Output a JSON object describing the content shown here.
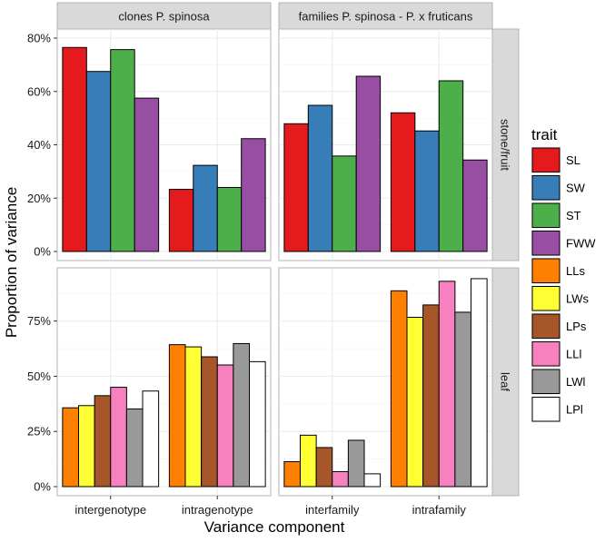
{
  "chart_data": {
    "type": "bar",
    "xlabel": "Variance component",
    "ylabel": "Proportion of variance",
    "legend": {
      "title": "trait",
      "position": "right",
      "items": [
        {
          "label": "SL",
          "color": "#e41a1c"
        },
        {
          "label": "SW",
          "color": "#377eb8"
        },
        {
          "label": "ST",
          "color": "#4daf4a"
        },
        {
          "label": "FWW",
          "color": "#984ea3"
        },
        {
          "label": "LLs",
          "color": "#ff7f00"
        },
        {
          "label": "LWs",
          "color": "#ffff33"
        },
        {
          "label": "LPs",
          "color": "#a65628"
        },
        {
          "label": "LLl",
          "color": "#f781bf"
        },
        {
          "label": "LWl",
          "color": "#999999"
        },
        {
          "label": "LPl",
          "color": "#ffffff"
        }
      ]
    },
    "columns": [
      "clones P. spinosa",
      "families P. spinosa - P. x fruticans"
    ],
    "rows": [
      "stone/fruit",
      "leaf"
    ],
    "row_axes": [
      {
        "ylim": [
          0,
          0.8
        ],
        "ticks": [
          0,
          0.2,
          0.4,
          0.6,
          0.8
        ],
        "tick_labels": [
          "0%",
          "20%",
          "40%",
          "60%",
          "80%"
        ]
      },
      {
        "ylim": [
          0,
          0.95
        ],
        "ticks": [
          0,
          0.25,
          0.5,
          0.75
        ],
        "tick_labels": [
          "0%",
          "25%",
          "50%",
          "75%"
        ]
      }
    ],
    "column_categories": [
      [
        "intergenotype",
        "intragenotype"
      ],
      [
        "interfamily",
        "intrafamily"
      ]
    ],
    "panels": [
      {
        "row": 0,
        "col": 0,
        "traits": [
          "SL",
          "SW",
          "ST",
          "FWW"
        ],
        "series": [
          {
            "category": "intergenotype",
            "values": [
              0.765,
              0.675,
              0.757,
              0.575
            ]
          },
          {
            "category": "intragenotype",
            "values": [
              0.233,
              0.323,
              0.24,
              0.423
            ]
          }
        ]
      },
      {
        "row": 0,
        "col": 1,
        "traits": [
          "SL",
          "SW",
          "ST",
          "FWW"
        ],
        "series": [
          {
            "category": "interfamily",
            "values": [
              0.479,
              0.548,
              0.358,
              0.657
            ]
          },
          {
            "category": "intrafamily",
            "values": [
              0.52,
              0.452,
              0.64,
              0.343
            ]
          }
        ]
      },
      {
        "row": 1,
        "col": 0,
        "traits": [
          "LLs",
          "LWs",
          "LPs",
          "LLl",
          "LWl",
          "LPl"
        ],
        "series": [
          {
            "category": "intergenotype",
            "values": [
              0.357,
              0.367,
              0.412,
              0.45,
              0.352,
              0.433
            ]
          },
          {
            "category": "intragenotype",
            "values": [
              0.643,
              0.633,
              0.588,
              0.551,
              0.648,
              0.566
            ]
          }
        ]
      },
      {
        "row": 1,
        "col": 1,
        "traits": [
          "LLs",
          "LWs",
          "LPs",
          "LLl",
          "LWl",
          "LPl"
        ],
        "series": [
          {
            "category": "interfamily",
            "values": [
              0.113,
              0.233,
              0.177,
              0.068,
              0.21,
              0.058
            ]
          },
          {
            "category": "intrafamily",
            "values": [
              0.887,
              0.767,
              0.823,
              0.93,
              0.79,
              0.942
            ]
          }
        ]
      }
    ]
  }
}
